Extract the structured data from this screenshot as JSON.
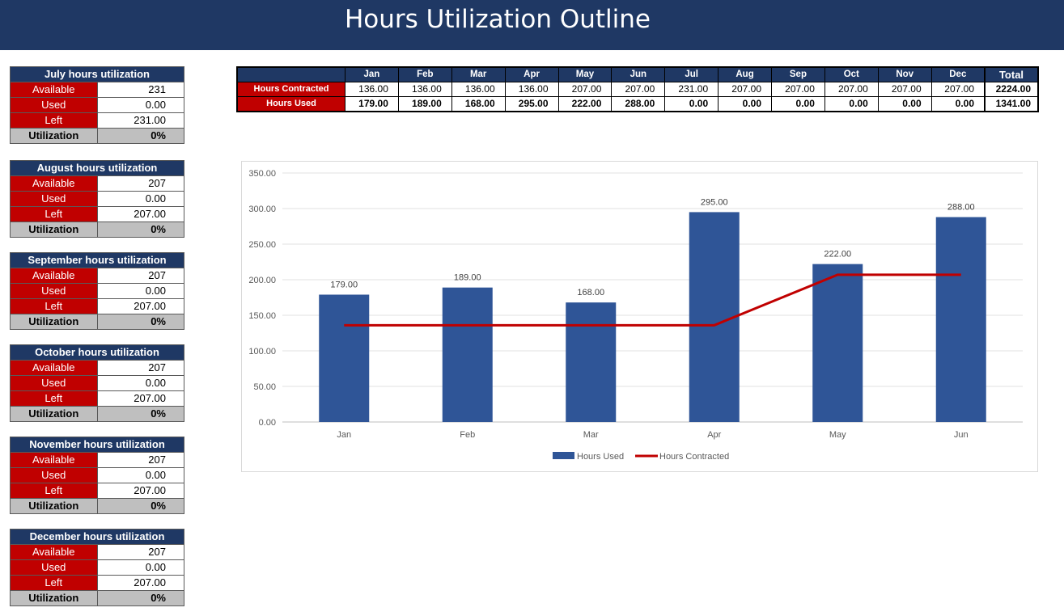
{
  "page": {
    "title": "Hours Utilization Outline"
  },
  "monthly_utilization": [
    {
      "header": "July hours utilization",
      "available_label": "Available",
      "available": "231",
      "used_label": "Used",
      "used": "0.00",
      "left_label": "Left",
      "left": "231.00",
      "utilization_label": "Utilization",
      "utilization": "0%"
    },
    {
      "header": "August hours utilization",
      "available_label": "Available",
      "available": "207",
      "used_label": "Used",
      "used": "0.00",
      "left_label": "Left",
      "left": "207.00",
      "utilization_label": "Utilization",
      "utilization": "0%"
    },
    {
      "header": "September hours utilization",
      "available_label": "Available",
      "available": "207",
      "used_label": "Used",
      "used": "0.00",
      "left_label": "Left",
      "left": "207.00",
      "utilization_label": "Utilization",
      "utilization": "0%"
    },
    {
      "header": "October hours utilization",
      "available_label": "Available",
      "available": "207",
      "used_label": "Used",
      "used": "0.00",
      "left_label": "Left",
      "left": "207.00",
      "utilization_label": "Utilization",
      "utilization": "0%"
    },
    {
      "header": "November hours utilization",
      "available_label": "Available",
      "available": "207",
      "used_label": "Used",
      "used": "0.00",
      "left_label": "Left",
      "left": "207.00",
      "utilization_label": "Utilization",
      "utilization": "0%"
    },
    {
      "header": "December hours utilization",
      "available_label": "Available",
      "available": "207",
      "used_label": "Used",
      "used": "0.00",
      "left_label": "Left",
      "left": "207.00",
      "utilization_label": "Utilization",
      "utilization": "0%"
    }
  ],
  "summary_table": {
    "months": [
      "Jan",
      "Feb",
      "Mar",
      "Apr",
      "May",
      "Jun",
      "Jul",
      "Aug",
      "Sep",
      "Oct",
      "Nov",
      "Dec"
    ],
    "total_label": "Total",
    "rows": [
      {
        "label": "Hours Contracted",
        "values": [
          "136.00",
          "136.00",
          "136.00",
          "136.00",
          "207.00",
          "207.00",
          "231.00",
          "207.00",
          "207.00",
          "207.00",
          "207.00",
          "207.00"
        ],
        "total": "2224.00"
      },
      {
        "label": "Hours Used",
        "values": [
          "179.00",
          "189.00",
          "168.00",
          "295.00",
          "222.00",
          "288.00",
          "0.00",
          "0.00",
          "0.00",
          "0.00",
          "0.00",
          "0.00"
        ],
        "total": "1341.00"
      }
    ]
  },
  "chart_data": {
    "type": "bar",
    "categories": [
      "Jan",
      "Feb",
      "Mar",
      "Apr",
      "May",
      "Jun"
    ],
    "series": [
      {
        "name": "Hours Used",
        "type": "bar",
        "values": [
          179,
          189,
          168,
          295,
          222,
          288
        ],
        "color": "#2f5597",
        "data_labels": [
          "179.00",
          "189.00",
          "168.00",
          "295.00",
          "222.00",
          "288.00"
        ]
      },
      {
        "name": "Hours Contracted",
        "type": "line",
        "values": [
          136,
          136,
          136,
          136,
          207,
          207
        ],
        "color": "#c00000"
      }
    ],
    "ylim": [
      0,
      350
    ],
    "yticks": [
      "0.00",
      "50.00",
      "100.00",
      "150.00",
      "200.00",
      "250.00",
      "300.00",
      "350.00"
    ],
    "grid": true,
    "legend": "bottom"
  },
  "colors": {
    "header_navy": "#1f3864",
    "label_red": "#c00000",
    "util_gray": "#bfbfbf",
    "bar_blue": "#2f5597"
  }
}
